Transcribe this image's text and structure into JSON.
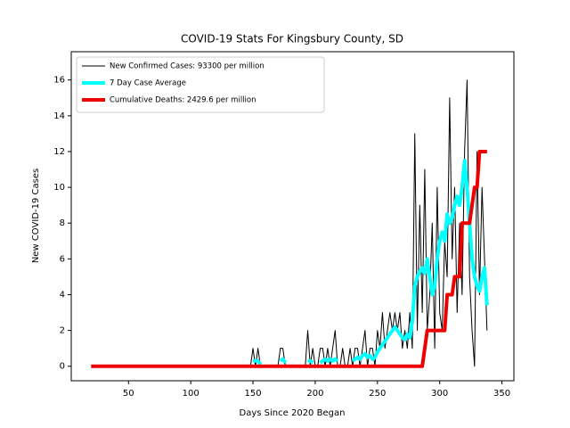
{
  "chart_data": {
    "type": "line",
    "title": "COVID-19 Stats For Kingsbury County, SD",
    "x_label": "Days Since 2020 Began",
    "y_label": "New COVID-19 Cases",
    "xlim": [
      4,
      359.6
    ],
    "ylim": [
      -0.81,
      17.58
    ],
    "xticks": [
      50,
      100,
      150,
      200,
      250,
      300,
      350
    ],
    "yticks": [
      0,
      2,
      4,
      6,
      8,
      10,
      12,
      14,
      16
    ],
    "legend": "upper left",
    "x": [
      20,
      146,
      148,
      150,
      152,
      154,
      156,
      158,
      160,
      162,
      164,
      166,
      168,
      170,
      172,
      174,
      176,
      178,
      180,
      182,
      184,
      186,
      188,
      190,
      192,
      194,
      196,
      198,
      200,
      202,
      204,
      206,
      208,
      210,
      212,
      214,
      216,
      218,
      220,
      222,
      224,
      226,
      228,
      230,
      232,
      234,
      236,
      238,
      240,
      242,
      244,
      246,
      248,
      250,
      252,
      254,
      256,
      258,
      260,
      262,
      264,
      266,
      268,
      270,
      272,
      274,
      276,
      278,
      280,
      282,
      284,
      286,
      288,
      290,
      292,
      294,
      296,
      298,
      300,
      302,
      304,
      306,
      308,
      310,
      312,
      314,
      316,
      318,
      320,
      322,
      324,
      326,
      328,
      330,
      332,
      334,
      336,
      338
    ],
    "series": [
      {
        "name": "New Confirmed Cases: 93300 per million",
        "color": "#000000",
        "width": 1,
        "values": [
          0,
          0,
          0,
          1,
          0,
          1,
          0,
          0,
          0,
          0,
          0,
          0,
          0,
          0,
          1,
          1,
          0,
          0,
          0,
          0,
          0,
          0,
          0,
          0,
          0,
          2,
          0,
          1,
          0,
          0,
          1,
          1,
          0,
          1,
          0,
          1,
          2,
          0,
          0,
          1,
          0,
          0,
          1,
          0,
          1,
          1,
          0,
          1,
          2,
          0,
          1,
          1,
          0,
          2,
          1,
          3,
          1,
          2,
          3,
          2,
          3,
          2,
          3,
          1,
          2,
          1,
          3,
          1,
          13,
          2,
          9,
          3,
          11,
          2,
          4,
          8,
          1,
          10,
          3,
          2,
          7,
          5,
          15,
          6,
          10,
          3,
          8,
          4,
          12,
          16,
          5,
          2,
          0,
          12,
          4,
          10,
          6,
          2
        ]
      },
      {
        "name": "7 Day Case Average",
        "color": "#00ffff",
        "width": 4,
        "values": [
          null,
          null,
          null,
          0.3,
          0.3,
          0.3,
          0.1,
          null,
          null,
          null,
          null,
          null,
          null,
          null,
          0.3,
          0.4,
          0.2,
          null,
          null,
          null,
          null,
          null,
          null,
          null,
          null,
          0.3,
          0.3,
          0.2,
          null,
          null,
          0.2,
          0.3,
          0.4,
          0.3,
          0.4,
          0.3,
          0.4,
          0.3,
          null,
          null,
          null,
          null,
          null,
          0.3,
          0.4,
          0.5,
          0.4,
          0.6,
          0.7,
          0.5,
          0.6,
          0.4,
          0.5,
          0.8,
          1.0,
          1.2,
          1.4,
          1.6,
          1.8,
          2.0,
          2.2,
          2.0,
          1.8,
          1.6,
          1.5,
          1.8,
          1.6,
          2.5,
          4.5,
          5.0,
          5.3,
          5.5,
          5.2,
          6.0,
          5.0,
          4.0,
          4.5,
          6.0,
          7.0,
          7.5,
          7.0,
          8.5,
          8.0,
          8.3,
          9.0,
          9.5,
          9.0,
          10.0,
          11.5,
          10.0,
          8.0,
          6.0,
          5.0,
          4.5,
          4.2,
          5.0,
          5.5,
          3.4
        ]
      },
      {
        "name": "Cumulative Deaths: 2429.6 per million",
        "color": "#ee0000",
        "width": 4,
        "values": [
          0,
          0,
          0,
          0,
          0,
          0,
          0,
          0,
          0,
          0,
          0,
          0,
          0,
          0,
          0,
          0,
          0,
          0,
          0,
          0,
          0,
          0,
          0,
          0,
          0,
          0,
          0,
          0,
          0,
          0,
          0,
          0,
          0,
          0,
          0,
          0,
          0,
          0,
          0,
          0,
          0,
          0,
          0,
          0,
          0,
          0,
          0,
          0,
          0,
          0,
          0,
          0,
          0,
          0,
          0,
          0,
          0,
          0,
          0,
          0,
          0,
          0,
          0,
          0,
          0,
          0,
          0,
          0,
          0,
          0,
          0,
          0,
          1,
          2,
          2,
          2,
          2,
          2,
          2,
          2,
          2,
          4,
          4,
          4,
          5,
          5,
          5,
          8,
          8,
          8,
          8,
          9,
          10,
          10,
          12,
          12,
          12,
          12
        ]
      }
    ]
  }
}
